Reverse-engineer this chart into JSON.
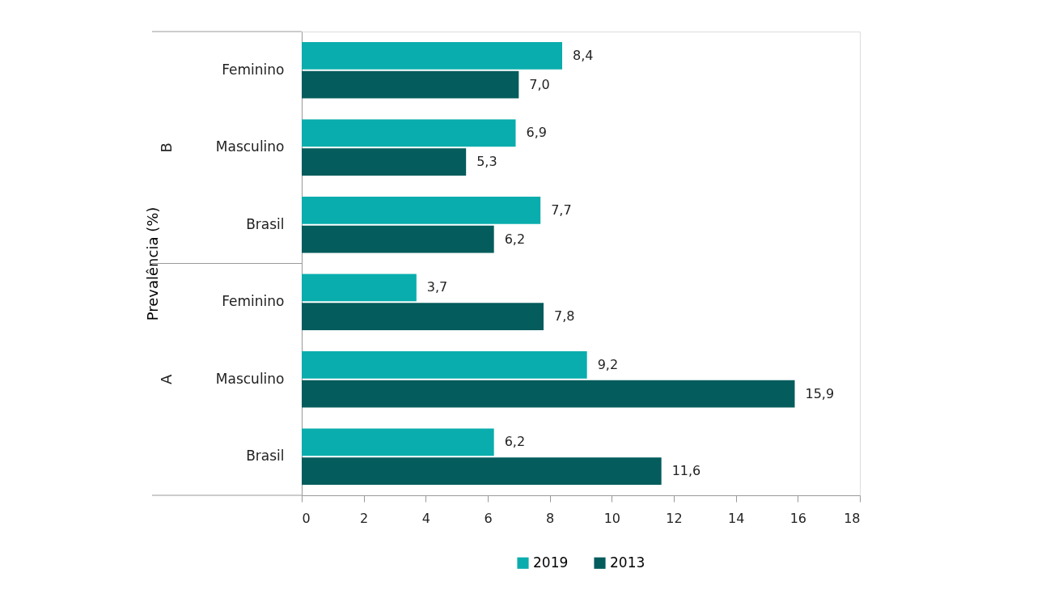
{
  "chart_data": {
    "type": "bar",
    "orientation": "horizontal",
    "ylabel": "Prevalência (%)",
    "categories": [
      "Feminino",
      "Masculino",
      "Brasil",
      "Feminino",
      "Masculino",
      "Brasil"
    ],
    "annotations": [
      "B",
      "A"
    ],
    "series": [
      {
        "name": "2019",
        "color": "#0aadad",
        "values": [
          8.4,
          6.9,
          7.7,
          3.7,
          9.2,
          6.2
        ],
        "value_labels": [
          "8,4",
          "6,9",
          "7,7",
          "3,7",
          "9,2",
          "6,2"
        ]
      },
      {
        "name": "2013",
        "color": "#055c5c",
        "values": [
          7.0,
          5.3,
          6.2,
          7.8,
          15.9,
          11.6
        ],
        "value_labels": [
          "7,0",
          "5,3",
          "6,2",
          "7,8",
          "15,9",
          "11,6"
        ]
      }
    ],
    "xlim": [
      0,
      18
    ],
    "xticks": [
      0,
      2,
      4,
      6,
      8,
      10,
      12,
      14,
      16,
      18
    ],
    "legend": "bottom",
    "grid": false
  }
}
